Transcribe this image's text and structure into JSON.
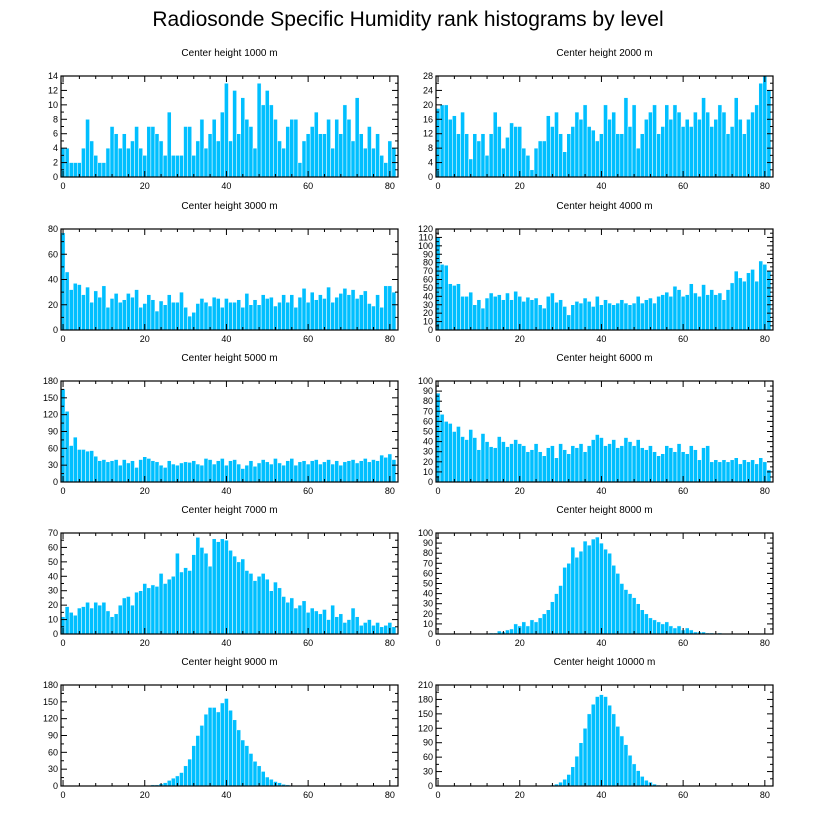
{
  "chart_data": {
    "title": "Radiosonde Specific Humidity rank histograms by level",
    "type": "bar",
    "bar_color": "#00bfff",
    "bar_edge_color": "#ffffff",
    "xlim": [
      -0.5,
      82
    ],
    "xticks": [
      0,
      20,
      40,
      60,
      80
    ],
    "panels": [
      {
        "title": "Center height 1000 m",
        "ylim": [
          0,
          14
        ],
        "yticks": [
          0,
          2,
          4,
          6,
          8,
          10,
          12,
          14
        ],
        "values": [
          4,
          4,
          2,
          2,
          2,
          4,
          8,
          5,
          3,
          2,
          2,
          4,
          7,
          6,
          4,
          6,
          4,
          5,
          7,
          4,
          3,
          7,
          7,
          6,
          5,
          3,
          9,
          3,
          3,
          3,
          7,
          7,
          3,
          5,
          8,
          4,
          6,
          8,
          5,
          9,
          13,
          5,
          12,
          6,
          11,
          8,
          7,
          4,
          13,
          10,
          12,
          10,
          8,
          5,
          4,
          7,
          8,
          8,
          2,
          5,
          6,
          7,
          9,
          6,
          6,
          8,
          4,
          8,
          6,
          10,
          8,
          5,
          11,
          6,
          4,
          7,
          4,
          6,
          3,
          2,
          5,
          4
        ]
      },
      {
        "title": "Center height 2000 m",
        "ylim": [
          0,
          28
        ],
        "yticks": [
          0,
          4,
          8,
          12,
          16,
          20,
          24,
          28
        ],
        "values": [
          19,
          20,
          20,
          16,
          17,
          12,
          18,
          12,
          5,
          12,
          10,
          12,
          6,
          12,
          18,
          14,
          8,
          11,
          15,
          14,
          14,
          8,
          6,
          2,
          8,
          10,
          10,
          17,
          14,
          18,
          12,
          7,
          12,
          14,
          18,
          16,
          20,
          14,
          13,
          10,
          12,
          20,
          16,
          18,
          12,
          12,
          22,
          14,
          20,
          8,
          12,
          16,
          18,
          20,
          12,
          14,
          20,
          16,
          20,
          18,
          14,
          16,
          14,
          18,
          16,
          22,
          18,
          14,
          16,
          20,
          18,
          12,
          14,
          22,
          16,
          12,
          16,
          18,
          20,
          26,
          28,
          24
        ]
      },
      {
        "title": "Center height 3000 m",
        "ylim": [
          0,
          80
        ],
        "yticks": [
          0,
          20,
          40,
          60,
          80
        ],
        "values": [
          77,
          46,
          32,
          37,
          36,
          28,
          34,
          22,
          31,
          26,
          35,
          18,
          25,
          29,
          22,
          24,
          29,
          26,
          32,
          18,
          21,
          28,
          24,
          15,
          23,
          20,
          28,
          22,
          22,
          30,
          18,
          11,
          14,
          21,
          25,
          22,
          19,
          26,
          25,
          18,
          25,
          22,
          22,
          24,
          18,
          29,
          20,
          24,
          20,
          28,
          25,
          26,
          19,
          22,
          28,
          22,
          28,
          18,
          26,
          33,
          22,
          30,
          24,
          28,
          25,
          34,
          22,
          26,
          29,
          33,
          28,
          32,
          25,
          28,
          31,
          21,
          19,
          28,
          18,
          35,
          35,
          30
        ]
      },
      {
        "title": "Center height 4000 m",
        "ylim": [
          0,
          120
        ],
        "yticks": [
          0,
          10,
          20,
          30,
          40,
          50,
          60,
          70,
          80,
          90,
          100,
          110,
          120
        ],
        "values": [
          110,
          78,
          77,
          55,
          53,
          55,
          40,
          40,
          45,
          30,
          36,
          26,
          38,
          44,
          40,
          42,
          36,
          44,
          36,
          46,
          40,
          34,
          39,
          36,
          38,
          30,
          26,
          40,
          44,
          33,
          36,
          28,
          18,
          30,
          34,
          32,
          38,
          34,
          28,
          40,
          30,
          36,
          32,
          30,
          32,
          36,
          32,
          30,
          32,
          40,
          32,
          36,
          38,
          32,
          40,
          42,
          45,
          40,
          52,
          48,
          40,
          42,
          55,
          44,
          40,
          54,
          42,
          48,
          42,
          44,
          36,
          48,
          56,
          70,
          62,
          58,
          68,
          72,
          58,
          82,
          78,
          70
        ]
      },
      {
        "title": "Center height 5000 m",
        "ylim": [
          0,
          180
        ],
        "yticks": [
          0,
          30,
          60,
          90,
          120,
          150,
          180
        ],
        "values": [
          166,
          126,
          65,
          80,
          58,
          58,
          55,
          56,
          46,
          38,
          40,
          36,
          38,
          40,
          30,
          40,
          34,
          38,
          26,
          40,
          45,
          42,
          38,
          36,
          30,
          26,
          38,
          32,
          30,
          34,
          36,
          35,
          38,
          32,
          30,
          42,
          40,
          32,
          38,
          42,
          30,
          38,
          40,
          32,
          24,
          30,
          38,
          28,
          34,
          40,
          36,
          32,
          42,
          34,
          30,
          38,
          42,
          30,
          36,
          38,
          32,
          38,
          40,
          32,
          36,
          40,
          32,
          38,
          30,
          36,
          38,
          40,
          34,
          38,
          42,
          36,
          40,
          38,
          48,
          44,
          50,
          40
        ]
      },
      {
        "title": "Center height 6000 m",
        "ylim": [
          0,
          100
        ],
        "yticks": [
          0,
          10,
          20,
          30,
          40,
          50,
          60,
          70,
          80,
          90,
          100
        ],
        "values": [
          88,
          67,
          60,
          58,
          50,
          55,
          45,
          42,
          52,
          44,
          32,
          48,
          40,
          35,
          34,
          45,
          40,
          35,
          38,
          42,
          38,
          36,
          30,
          32,
          38,
          30,
          26,
          34,
          36,
          24,
          38,
          32,
          28,
          36,
          34,
          38,
          30,
          36,
          42,
          47,
          44,
          36,
          38,
          42,
          34,
          36,
          44,
          40,
          36,
          42,
          34,
          32,
          36,
          30,
          26,
          28,
          36,
          34,
          30,
          38,
          30,
          28,
          36,
          32,
          22,
          34,
          36,
          20,
          22,
          20,
          22,
          20,
          22,
          24,
          18,
          22,
          20,
          22,
          18,
          24,
          20,
          12
        ]
      },
      {
        "title": "Center height 7000 m",
        "ylim": [
          0,
          70
        ],
        "yticks": [
          0,
          10,
          20,
          30,
          40,
          50,
          60,
          70
        ],
        "values": [
          12,
          19,
          15,
          13,
          18,
          19,
          22,
          18,
          22,
          20,
          22,
          16,
          12,
          14,
          20,
          25,
          26,
          20,
          29,
          30,
          35,
          32,
          34,
          33,
          42,
          35,
          38,
          40,
          56,
          43,
          46,
          44,
          55,
          67,
          60,
          56,
          47,
          66,
          64,
          66,
          65,
          58,
          54,
          50,
          52,
          44,
          42,
          37,
          40,
          42,
          38,
          30,
          36,
          32,
          26,
          22,
          25,
          18,
          20,
          23,
          15,
          18,
          16,
          14,
          17,
          10,
          20,
          12,
          14,
          8,
          10,
          18,
          12,
          6,
          8,
          10,
          6,
          8,
          5,
          6,
          8,
          5
        ]
      },
      {
        "title": "Center height 8000 m",
        "ylim": [
          0,
          100
        ],
        "yticks": [
          0,
          10,
          20,
          30,
          40,
          50,
          60,
          70,
          80,
          90,
          100
        ],
        "values": [
          0,
          0,
          0,
          0,
          0,
          0,
          0,
          0,
          0,
          0,
          0,
          0,
          0,
          1,
          1,
          3,
          2,
          4,
          5,
          10,
          8,
          12,
          8,
          14,
          12,
          16,
          20,
          24,
          32,
          40,
          48,
          66,
          70,
          86,
          76,
          82,
          92,
          88,
          94,
          96,
          90,
          84,
          80,
          68,
          60,
          50,
          44,
          40,
          36,
          30,
          24,
          20,
          16,
          14,
          12,
          10,
          12,
          8,
          6,
          8,
          4,
          6,
          4,
          2,
          2,
          2,
          1,
          1,
          0,
          1,
          0,
          0,
          0,
          0,
          0,
          0,
          0,
          0,
          0,
          0,
          0,
          0
        ]
      },
      {
        "title": "Center height 9000 m",
        "ylim": [
          0,
          180
        ],
        "yticks": [
          0,
          30,
          60,
          90,
          120,
          150,
          180
        ],
        "values": [
          0,
          0,
          0,
          0,
          0,
          0,
          0,
          0,
          0,
          0,
          0,
          0,
          0,
          0,
          0,
          0,
          0,
          0,
          0,
          0,
          0,
          0,
          2,
          2,
          4,
          6,
          10,
          14,
          18,
          24,
          36,
          48,
          72,
          90,
          108,
          128,
          140,
          140,
          132,
          148,
          156,
          135,
          118,
          100,
          82,
          72,
          58,
          44,
          36,
          26,
          16,
          12,
          8,
          6,
          3,
          2,
          1,
          0,
          1,
          0,
          0,
          0,
          0,
          0,
          0,
          0,
          0,
          1,
          0,
          0,
          0,
          0,
          0,
          0,
          0,
          0,
          0,
          0,
          0,
          0,
          0,
          0
        ]
      },
      {
        "title": "Center height 10000 m",
        "ylim": [
          0,
          210
        ],
        "yticks": [
          0,
          30,
          60,
          90,
          120,
          150,
          180,
          210
        ],
        "values": [
          0,
          0,
          0,
          0,
          0,
          0,
          0,
          0,
          0,
          0,
          0,
          0,
          0,
          0,
          0,
          0,
          0,
          0,
          0,
          0,
          0,
          0,
          0,
          0,
          0,
          0,
          0,
          1,
          2,
          4,
          8,
          14,
          24,
          40,
          62,
          90,
          120,
          150,
          170,
          186,
          190,
          186,
          168,
          150,
          124,
          104,
          86,
          64,
          46,
          32,
          20,
          12,
          8,
          4,
          2,
          1,
          1,
          0,
          0,
          0,
          0,
          0,
          0,
          0,
          0,
          0,
          0,
          0,
          0,
          0,
          0,
          0,
          0,
          0,
          0,
          0,
          0,
          0,
          0,
          0,
          0,
          0
        ]
      }
    ]
  }
}
